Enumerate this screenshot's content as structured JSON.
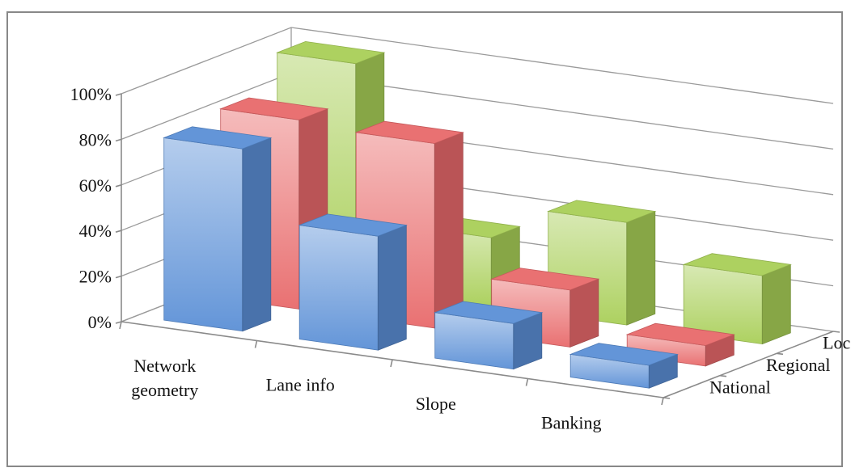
{
  "chart_data": {
    "type": "bar",
    "subtype": "3d-clustered-column",
    "categories": [
      "Network geometry",
      "Lane info",
      "Slope",
      "Banking"
    ],
    "series": [
      {
        "name": "National",
        "values": [
          80,
          50,
          20,
          10
        ],
        "color": "#5b8fd6"
      },
      {
        "name": "Regional",
        "values": [
          83,
          81,
          25,
          9
        ],
        "color": "#e8696b"
      },
      {
        "name": "Local",
        "values": [
          98,
          30,
          45,
          30
        ],
        "color": "#a9cf58"
      }
    ],
    "y_ticks": [
      "0%",
      "20%",
      "40%",
      "60%",
      "80%",
      "100%"
    ],
    "ylim": [
      0,
      100
    ],
    "grid": true,
    "legend": "series labels along depth axis (right)"
  }
}
